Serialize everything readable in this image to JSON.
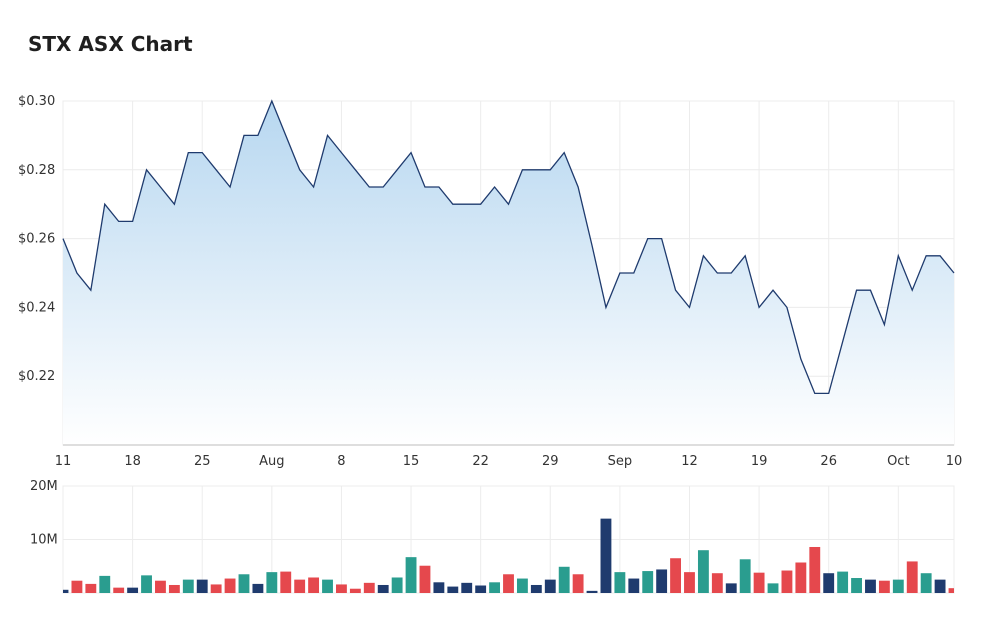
{
  "header": {
    "title": "STX ASX Chart"
  },
  "colors": {
    "line": "#1f3b6e",
    "area_top": "#b7d7f0",
    "area_bottom": "#ffffff",
    "vol_up": "#2a9d8f",
    "vol_down": "#e5484d",
    "vol_neutral": "#1f3b6e",
    "grid": "#ececec"
  },
  "chart_data": [
    {
      "type": "area",
      "title": "",
      "xlabel": "",
      "ylabel": "",
      "ylim": [
        0.2,
        0.3
      ],
      "grid": true,
      "yticks": [
        {
          "value": 0.3,
          "label": "$0.30"
        },
        {
          "value": 0.28,
          "label": "$0.28"
        },
        {
          "value": 0.26,
          "label": "$0.26"
        },
        {
          "value": 0.24,
          "label": "$0.24"
        },
        {
          "value": 0.22,
          "label": "$0.22"
        }
      ],
      "xticks": [
        {
          "index": 0,
          "label": "11"
        },
        {
          "index": 5,
          "label": "18"
        },
        {
          "index": 10,
          "label": "25"
        },
        {
          "index": 15,
          "label": "Aug"
        },
        {
          "index": 20,
          "label": "8"
        },
        {
          "index": 25,
          "label": "15"
        },
        {
          "index": 30,
          "label": "22"
        },
        {
          "index": 35,
          "label": "29"
        },
        {
          "index": 40,
          "label": "Sep"
        },
        {
          "index": 45,
          "label": "12"
        },
        {
          "index": 50,
          "label": "19"
        },
        {
          "index": 55,
          "label": "26"
        },
        {
          "index": 60,
          "label": "Oct"
        },
        {
          "index": 64,
          "label": "10"
        }
      ],
      "values": [
        0.26,
        0.25,
        0.245,
        0.27,
        0.265,
        0.265,
        0.28,
        0.275,
        0.27,
        0.285,
        0.285,
        0.28,
        0.275,
        0.29,
        0.29,
        0.3,
        0.29,
        0.28,
        0.275,
        0.29,
        0.285,
        0.28,
        0.275,
        0.275,
        0.28,
        0.285,
        0.275,
        0.275,
        0.27,
        0.27,
        0.27,
        0.275,
        0.27,
        0.28,
        0.28,
        0.28,
        0.285,
        0.275,
        0.258,
        0.24,
        0.25,
        0.25,
        0.26,
        0.26,
        0.245,
        0.24,
        0.255,
        0.25,
        0.25,
        0.255,
        0.24,
        0.245,
        0.24,
        0.225,
        0.215,
        0.215,
        0.23,
        0.245,
        0.245,
        0.235,
        0.255,
        0.245,
        0.255,
        0.255,
        0.25
      ]
    },
    {
      "type": "bar",
      "title": "",
      "ylim": [
        0,
        20000000
      ],
      "yticks": [
        {
          "value": 20000000,
          "label": "20M"
        },
        {
          "value": 10000000,
          "label": "10M"
        }
      ],
      "values": [
        600000,
        2300000,
        1700000,
        3200000,
        1000000,
        1000000,
        3300000,
        2300000,
        1500000,
        2500000,
        2500000,
        1600000,
        2700000,
        3500000,
        1700000,
        3900000,
        4000000,
        2500000,
        2900000,
        2500000,
        1600000,
        800000,
        1900000,
        1500000,
        2900000,
        6700000,
        5100000,
        2000000,
        1200000,
        1900000,
        1400000,
        2000000,
        3500000,
        2700000,
        1500000,
        2500000,
        4900000,
        3500000,
        400000,
        13900000,
        3900000,
        2700000,
        4100000,
        4400000,
        6500000,
        3900000,
        8000000,
        3700000,
        1800000,
        6300000,
        3800000,
        1800000,
        4200000,
        5700000,
        8600000,
        3700000,
        4000000,
        2800000,
        2500000,
        2300000,
        2500000,
        5900000,
        3700000,
        2500000,
        900000
      ],
      "directions": [
        "neutral",
        "down",
        "down",
        "up",
        "down",
        "neutral",
        "up",
        "down",
        "down",
        "up",
        "neutral",
        "down",
        "down",
        "up",
        "neutral",
        "up",
        "down",
        "down",
        "down",
        "up",
        "down",
        "down",
        "down",
        "neutral",
        "up",
        "up",
        "down",
        "neutral",
        "neutral",
        "neutral",
        "neutral",
        "up",
        "down",
        "up",
        "neutral",
        "neutral",
        "up",
        "down",
        "neutral",
        "neutral",
        "up",
        "neutral",
        "up",
        "neutral",
        "down",
        "down",
        "up",
        "down",
        "neutral",
        "up",
        "down",
        "up",
        "down",
        "down",
        "down",
        "neutral",
        "up",
        "up",
        "neutral",
        "down",
        "up",
        "down",
        "up",
        "neutral",
        "down"
      ]
    }
  ]
}
